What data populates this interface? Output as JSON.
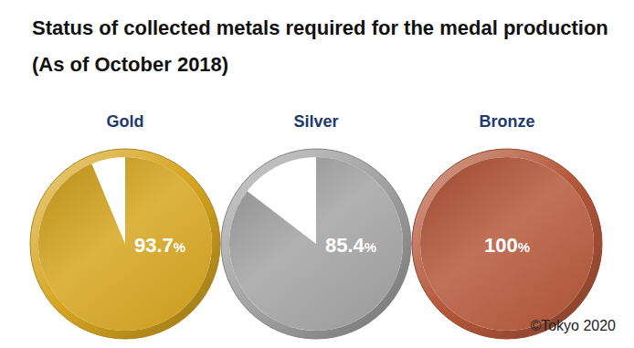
{
  "chart_data": {
    "type": "pie",
    "title": "Status of collected metals required for the medal production",
    "subtitle": "(As of October 2018)",
    "categories": [
      "Gold",
      "Silver",
      "Bronze"
    ],
    "values": [
      93.7,
      85.4,
      100
    ],
    "value_labels": [
      "93.7%",
      "85.4%",
      "100%"
    ],
    "colors": [
      "#d6a520",
      "#a3a3a3",
      "#b5583a"
    ],
    "data_labels": true,
    "annotations": [
      "©Tokyo 2020"
    ]
  }
}
